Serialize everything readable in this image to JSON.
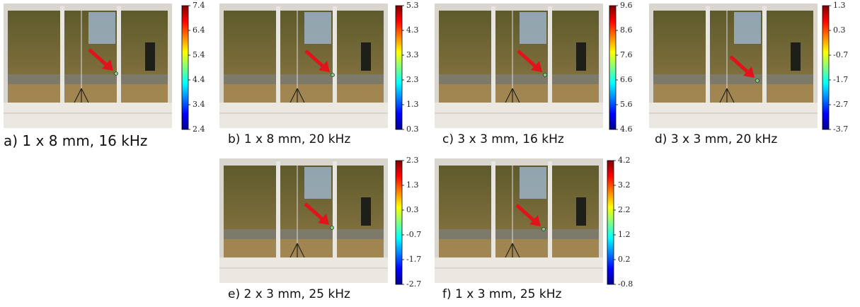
{
  "panels": [
    {
      "caption": "a) 1 x 8 mm, 16 kHz",
      "colorbar_ticks": [
        "7.4",
        "6.4",
        "5.4",
        "4.4",
        "3.4",
        "2.4"
      ]
    },
    {
      "caption": "b) 1 x 8 mm, 20 kHz",
      "colorbar_ticks": [
        "5.3",
        "4.3",
        "3.3",
        "2.3",
        "1.3",
        "0.3"
      ]
    },
    {
      "caption": "c) 3 x 3 mm, 16 kHz",
      "colorbar_ticks": [
        "9.6",
        "8.6",
        "7.6",
        "6.6",
        "5.6",
        "4.6"
      ]
    },
    {
      "caption": "d) 3 x 3 mm, 20 kHz",
      "colorbar_ticks": [
        "1.3",
        "0.3",
        "-0.7",
        "-1.7",
        "-2.7",
        "-3.7"
      ]
    },
    {
      "caption": "e) 2 x 3 mm, 25 kHz",
      "colorbar_ticks": [
        "2.3",
        "1.3",
        "0.3",
        "-0.7",
        "-1.7",
        "-2.7"
      ]
    },
    {
      "caption": "f) 1 x 3 mm, 25 kHz",
      "colorbar_ticks": [
        "4.2",
        "3.2",
        "2.2",
        "1.2",
        "0.2",
        "-0.8"
      ]
    }
  ]
}
